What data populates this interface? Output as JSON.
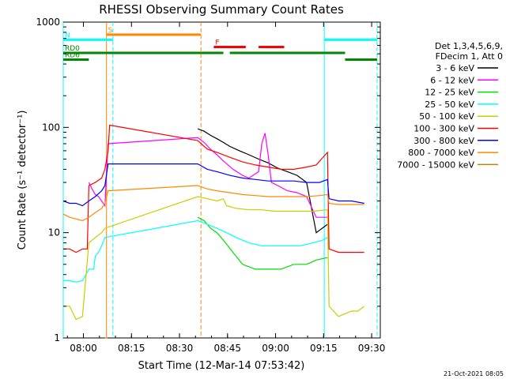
{
  "chart_data": {
    "type": "line",
    "title": "RHESSI Observing Summary Count Rates",
    "xlabel": "Start Time (12-Mar-14 07:53:42)",
    "ylabel": "Count Rate (s⁻¹ detector⁻¹)",
    "x_unit": "minutes after 07:53:42",
    "xlim": [
      0,
      99
    ],
    "ylim": [
      1,
      1000
    ],
    "yscale": "log",
    "x_ticks": [
      {
        "label": "08:00",
        "value": 6.3
      },
      {
        "label": "08:15",
        "value": 21.3
      },
      {
        "label": "08:30",
        "value": 36.3
      },
      {
        "label": "08:45",
        "value": 51.3
      },
      {
        "label": "09:00",
        "value": 66.3
      },
      {
        "label": "09:15",
        "value": 81.3
      },
      {
        "label": "09:30",
        "value": 96.3
      }
    ],
    "y_ticks": [
      {
        "label": "1",
        "value": 1
      },
      {
        "label": "10",
        "value": 10
      },
      {
        "label": "100",
        "value": 100
      },
      {
        "label": "1000",
        "value": 1000
      }
    ],
    "legend_header": [
      "Det 1,3,4,5,6,9,",
      "FDecim 1, Att 0"
    ],
    "legend_position": "right",
    "series": [
      {
        "name": "3 - 6 keV",
        "color": "#000000",
        "x": [
          42,
          44,
          46,
          48,
          50,
          52,
          55,
          58,
          61,
          64,
          67,
          70,
          73,
          76,
          79,
          82.5
        ],
        "y": [
          97,
          92,
          84,
          78,
          72,
          66,
          60,
          55,
          50,
          46,
          41,
          38,
          35,
          30,
          10,
          12
        ]
      },
      {
        "name": "6 - 12 keV",
        "color": "#ff00ff",
        "x": [
          8,
          9,
          10,
          11,
          13,
          14,
          42,
          44,
          46,
          48,
          50,
          53,
          56,
          58,
          61,
          62,
          63,
          64,
          65,
          67,
          70,
          73,
          76,
          79,
          82.5
        ],
        "y": [
          30,
          26,
          23,
          22,
          18,
          70,
          80,
          72,
          62,
          55,
          48,
          40,
          35,
          33,
          38,
          70,
          88,
          55,
          30,
          28,
          25,
          24,
          22,
          14,
          14
        ]
      },
      {
        "name": "12 - 25 keV",
        "color": "#00dd00",
        "x": [
          42,
          44,
          46,
          48,
          50,
          53,
          56,
          60,
          64,
          68,
          72,
          76,
          79,
          82.5
        ],
        "y": [
          14,
          13,
          11,
          10,
          8.5,
          6.5,
          5,
          4.5,
          4.5,
          4.5,
          5,
          5,
          5.5,
          5.8
        ]
      },
      {
        "name": "25 - 50 keV",
        "color": "#00ffff",
        "x": [
          0,
          2,
          4,
          6,
          8,
          9.5,
          10,
          11,
          12,
          13,
          42,
          45,
          48,
          51,
          54,
          58,
          62,
          66,
          70,
          74,
          78,
          81,
          82.5
        ],
        "y": [
          3.5,
          3.5,
          3.4,
          3.5,
          4.5,
          4.5,
          6,
          6.5,
          7.5,
          9,
          13,
          12,
          11,
          10,
          9,
          8,
          7.5,
          7.5,
          7.5,
          7.5,
          8,
          8.5,
          9
        ]
      },
      {
        "name": "50 - 100 keV",
        "color": "#cccc00",
        "x": [
          0,
          2,
          4,
          6,
          8,
          10,
          12,
          13,
          42,
          45,
          48,
          50,
          51,
          54,
          58,
          62,
          66,
          70,
          74,
          78,
          82.5,
          83,
          86,
          88,
          90,
          92,
          94
        ],
        "y": [
          2,
          2,
          1.5,
          1.6,
          8,
          9,
          10,
          11,
          22,
          21,
          20,
          21,
          18,
          17,
          16.5,
          16.5,
          16,
          16,
          16,
          16,
          16.5,
          2,
          1.6,
          1.7,
          1.8,
          1.8,
          2
        ]
      },
      {
        "name": "100 - 300 keV",
        "color": "#ff0000",
        "x": [
          0,
          2,
          4,
          6,
          7.5,
          8,
          10,
          12,
          13,
          14,
          14.5,
          42,
          45,
          48,
          52,
          56,
          60,
          64,
          68,
          72,
          76,
          79,
          82.5,
          83,
          86,
          90,
          94
        ],
        "y": [
          7,
          7,
          6.5,
          7,
          7,
          28,
          30,
          33,
          40,
          60,
          105,
          75,
          62,
          58,
          52,
          47,
          44,
          42,
          40,
          40,
          42,
          44,
          58,
          7,
          6.5,
          6.5,
          6.5
        ]
      },
      {
        "name": "300 - 800 keV",
        "color": "#0000ff",
        "x": [
          0,
          2,
          4,
          6,
          8,
          10,
          12,
          13,
          14,
          42,
          45,
          48,
          52,
          56,
          60,
          64,
          68,
          72,
          76,
          80,
          82.5,
          83,
          86,
          90,
          94
        ],
        "y": [
          20,
          19,
          19,
          18,
          20,
          22,
          25,
          28,
          45,
          45,
          40,
          38,
          35,
          33,
          32,
          31,
          31,
          31,
          30,
          30,
          32,
          21,
          20,
          20,
          19
        ]
      },
      {
        "name": "800 - 7000 keV",
        "color": "#ff8800",
        "x": [
          0,
          2,
          4,
          6,
          8,
          10,
          12,
          13,
          14,
          42,
          45,
          48,
          52,
          56,
          60,
          64,
          68,
          72,
          76,
          80,
          82.5,
          83,
          86,
          90,
          94
        ],
        "y": [
          15,
          14,
          13.5,
          13,
          14,
          15.5,
          17,
          19,
          25,
          28,
          26,
          25,
          24,
          23,
          22.5,
          22,
          22,
          22,
          22,
          22.5,
          23,
          19,
          18.5,
          18.5,
          18.5
        ]
      },
      {
        "name": "7000 - 15000 keV",
        "color": "#b8860b",
        "x": [
          13,
          13.5,
          13.8
        ],
        "y": [
          1,
          1,
          1
        ]
      }
    ],
    "state_bars": [
      {
        "label": "S",
        "color": "#ff8800",
        "x_ranges": [
          [
            13.5,
            43
          ]
        ],
        "y_level": 760
      },
      {
        "label": "N",
        "color": "#00ffff",
        "x_ranges": [
          [
            0,
            15.5
          ],
          [
            81.5,
            98
          ]
        ],
        "y_level": 680
      },
      {
        "label": "F",
        "color": "#ff0000",
        "x_ranges": [
          [
            47,
            57
          ],
          [
            61,
            69
          ]
        ],
        "y_level": 580
      },
      {
        "label": "RD0",
        "color": "#008800",
        "x_ranges": [
          [
            0,
            43
          ],
          [
            43,
            50
          ],
          [
            52,
            88
          ]
        ],
        "y_level": 510
      },
      {
        "label": "RD6",
        "color": "#008800",
        "x_ranges": [
          [
            0,
            8
          ],
          [
            88,
            98
          ]
        ],
        "y_level": 440
      }
    ],
    "vlines": [
      {
        "x": 0,
        "color": "#00ffff",
        "dash": false
      },
      {
        "x": 13.5,
        "color": "#ff8800",
        "dash": false
      },
      {
        "x": 15.5,
        "color": "#00ffff",
        "dash": true
      },
      {
        "x": 43,
        "color": "#ff8800",
        "dash": true
      },
      {
        "x": 81.5,
        "color": "#00ffff",
        "dash": false
      },
      {
        "x": 98,
        "color": "#00ffff",
        "dash": true
      }
    ],
    "timestamp": "21-Oct-2021 08:05"
  }
}
